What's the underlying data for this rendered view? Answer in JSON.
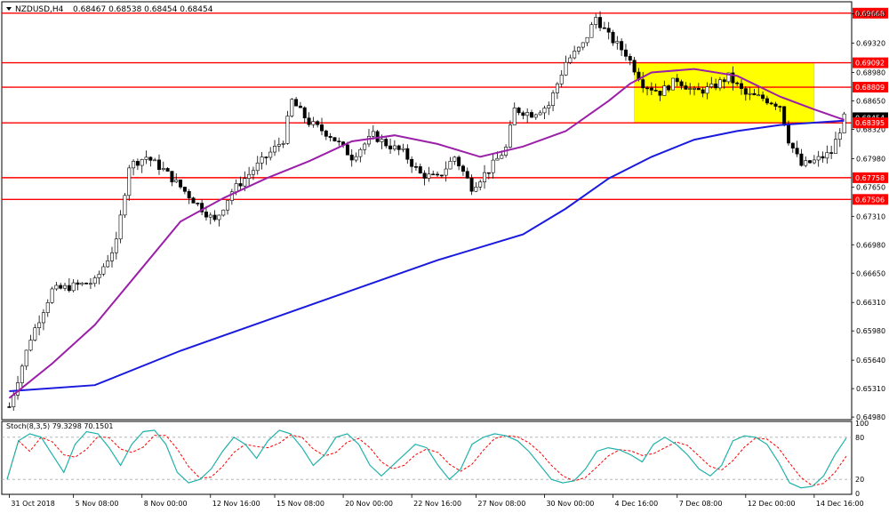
{
  "header": {
    "symbol_timeframe": "NZDUSD,H4",
    "ohlc": "0.68467 0.68538 0.68454 0.68454"
  },
  "chart_data": {
    "type": "candlestick",
    "price_axis": {
      "ticks": [
        "0.69660",
        "0.69320",
        "0.68980",
        "0.68650",
        "0.68320",
        "0.67980",
        "0.67650",
        "0.67310",
        "0.66980",
        "0.66650",
        "0.66310",
        "0.65980",
        "0.65640",
        "0.65310",
        "0.64980"
      ],
      "ylim": [
        0.6495,
        0.698
      ]
    },
    "time_axis": {
      "ticks": [
        "31 Oct 2018",
        "5 Nov 08:00",
        "8 Nov 00:00",
        "12 Nov 16:00",
        "15 Nov 08:00",
        "20 Nov 00:00",
        "22 Nov 16:00",
        "27 Nov 08:00",
        "30 Nov 00:00",
        "4 Dec 16:00",
        "7 Dec 08:00",
        "12 Dec 00:00",
        "14 Dec 16:00"
      ],
      "tick_bars": [
        0,
        15,
        31,
        47,
        62,
        78,
        94,
        109,
        125,
        141,
        156,
        172,
        188
      ]
    },
    "horizontal_lines": [
      {
        "label": "0.69668",
        "value": 0.69668
      },
      {
        "label": "0.69092",
        "value": 0.69092
      },
      {
        "label": "0.68809",
        "value": 0.68809
      },
      {
        "label": "0.68395",
        "value": 0.68395
      },
      {
        "label": "0.67758",
        "value": 0.67758
      },
      {
        "label": "0.67506",
        "value": 0.67506
      }
    ],
    "current_price_label": "0.68454",
    "current_price": 0.68454,
    "highlight_zone": {
      "bar_start": 146,
      "bar_end": 188,
      "price_low": 0.684,
      "price_high": 0.69092,
      "color": "#ffff00"
    },
    "ma_fast_color": "#9b1fa8",
    "ma_slow_color": "#1a1adf",
    "line_color": "#ff0000",
    "ma_fast_points": [
      [
        0,
        0.652
      ],
      [
        10,
        0.656
      ],
      [
        20,
        0.6605
      ],
      [
        30,
        0.6665
      ],
      [
        40,
        0.6725
      ],
      [
        50,
        0.6752
      ],
      [
        60,
        0.6775
      ],
      [
        70,
        0.6795
      ],
      [
        80,
        0.6818
      ],
      [
        90,
        0.6825
      ],
      [
        100,
        0.6815
      ],
      [
        110,
        0.68
      ],
      [
        120,
        0.6812
      ],
      [
        130,
        0.683
      ],
      [
        140,
        0.6865
      ],
      [
        145,
        0.6885
      ],
      [
        150,
        0.6898
      ],
      [
        160,
        0.6902
      ],
      [
        170,
        0.6894
      ],
      [
        180,
        0.687
      ],
      [
        188,
        0.6855
      ],
      [
        195,
        0.6843
      ]
    ],
    "ma_slow_points": [
      [
        0,
        0.6528
      ],
      [
        20,
        0.6535
      ],
      [
        40,
        0.6575
      ],
      [
        60,
        0.661
      ],
      [
        80,
        0.6645
      ],
      [
        100,
        0.668
      ],
      [
        120,
        0.671
      ],
      [
        130,
        0.674
      ],
      [
        140,
        0.6775
      ],
      [
        150,
        0.68
      ],
      [
        160,
        0.682
      ],
      [
        170,
        0.683
      ],
      [
        180,
        0.6837
      ],
      [
        195,
        0.6842
      ]
    ],
    "candle_path": [
      [
        0,
        0.651
      ],
      [
        5,
        0.659
      ],
      [
        10,
        0.6645
      ],
      [
        15,
        0.665
      ],
      [
        20,
        0.6655
      ],
      [
        25,
        0.67
      ],
      [
        28,
        0.679
      ],
      [
        32,
        0.68
      ],
      [
        36,
        0.6785
      ],
      [
        40,
        0.6765
      ],
      [
        45,
        0.674
      ],
      [
        48,
        0.6725
      ],
      [
        52,
        0.676
      ],
      [
        58,
        0.679
      ],
      [
        64,
        0.682
      ],
      [
        66,
        0.6865
      ],
      [
        70,
        0.684
      ],
      [
        75,
        0.6825
      ],
      [
        80,
        0.68
      ],
      [
        85,
        0.6825
      ],
      [
        88,
        0.6815
      ],
      [
        92,
        0.6805
      ],
      [
        96,
        0.678
      ],
      [
        100,
        0.6775
      ],
      [
        104,
        0.68
      ],
      [
        108,
        0.6765
      ],
      [
        112,
        0.6785
      ],
      [
        116,
        0.681
      ],
      [
        118,
        0.6855
      ],
      [
        122,
        0.685
      ],
      [
        126,
        0.686
      ],
      [
        130,
        0.691
      ],
      [
        134,
        0.693
      ],
      [
        137,
        0.6962
      ],
      [
        140,
        0.694
      ],
      [
        144,
        0.692
      ],
      [
        148,
        0.6885
      ],
      [
        152,
        0.6875
      ],
      [
        156,
        0.689
      ],
      [
        160,
        0.6875
      ],
      [
        164,
        0.688
      ],
      [
        168,
        0.6893
      ],
      [
        172,
        0.6872
      ],
      [
        176,
        0.6868
      ],
      [
        180,
        0.686
      ],
      [
        182,
        0.682
      ],
      [
        185,
        0.679
      ],
      [
        188,
        0.6795
      ],
      [
        192,
        0.6805
      ],
      [
        195,
        0.6845
      ]
    ],
    "stochastic": {
      "label": "Stoch(8,3,5) 79.3298 70.1501",
      "levels": [
        "80",
        "20"
      ],
      "scale_labels": [
        "100",
        "80",
        "20",
        "0"
      ],
      "main_color": "#20b2aa",
      "signal_color": "#ff0000",
      "main": [
        20,
        75,
        85,
        80,
        55,
        30,
        70,
        88,
        85,
        65,
        40,
        70,
        88,
        90,
        70,
        30,
        15,
        20,
        35,
        60,
        80,
        70,
        50,
        75,
        90,
        85,
        65,
        40,
        55,
        80,
        85,
        70,
        40,
        25,
        40,
        55,
        70,
        65,
        40,
        20,
        35,
        70,
        80,
        85,
        82,
        75,
        60,
        40,
        20,
        15,
        18,
        35,
        60,
        65,
        62,
        55,
        45,
        70,
        80,
        70,
        55,
        35,
        25,
        40,
        75,
        82,
        80,
        70,
        45,
        15,
        8,
        10,
        25,
        55,
        79
      ]
    }
  }
}
